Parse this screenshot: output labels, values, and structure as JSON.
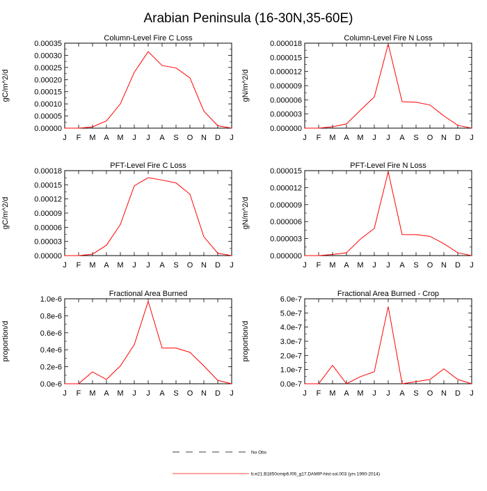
{
  "title": "Arabian Peninsula (16-30N,35-60E)",
  "months": [
    "J",
    "F",
    "M",
    "A",
    "M",
    "J",
    "J",
    "A",
    "S",
    "O",
    "N",
    "D",
    "J"
  ],
  "series_color": "#ff0000",
  "chart_data": [
    {
      "type": "line",
      "title": "Column-Level Fire C Loss",
      "ylabel": "gC/m^2/d",
      "ylim": [
        0,
        0.00035
      ],
      "yticks": [
        "0.00000",
        "0.00005",
        "0.00010",
        "0.00015",
        "0.00020",
        "0.00025",
        "0.00030",
        "0.00035"
      ],
      "values": [
        0.0,
        0.0,
        5e-06,
        3e-05,
        0.0001,
        0.00023,
        0.000315,
        0.000258,
        0.000248,
        0.000207,
        7e-05,
        1e-05,
        0.0
      ]
    },
    {
      "type": "line",
      "title": "Column-Level Fire N Loss",
      "ylabel": "gN/m^2/d",
      "ylim": [
        0,
        1.8e-05
      ],
      "yticks": [
        "0.000000",
        "0.000003",
        "0.000006",
        "0.000009",
        "0.000012",
        "0.000015",
        "0.000018"
      ],
      "values": [
        0.0,
        0.0,
        3e-07,
        9e-07,
        3.8e-06,
        6.6e-06,
        1.78e-05,
        5.6e-06,
        5.5e-06,
        4.9e-06,
        2.6e-06,
        6e-07,
        0.0
      ]
    },
    {
      "type": "line",
      "title": "PFT-Level Fire C Loss",
      "ylabel": "gC/m^2/d",
      "ylim": [
        0,
        0.00018
      ],
      "yticks": [
        "0.00000",
        "0.00003",
        "0.00006",
        "0.00009",
        "0.00012",
        "0.00015",
        "0.00018"
      ],
      "values": [
        0.0,
        0.0,
        3e-06,
        2.2e-05,
        6.6e-05,
        0.000148,
        0.000165,
        0.00016,
        0.000154,
        0.00013,
        4e-05,
        5e-06,
        0.0
      ]
    },
    {
      "type": "line",
      "title": "PFT-Level Fire N Loss",
      "ylabel": "gN/m^2/d",
      "ylim": [
        0,
        1.5e-05
      ],
      "yticks": [
        "0.000000",
        "0.000003",
        "0.000006",
        "0.000009",
        "0.000012",
        "0.000015"
      ],
      "values": [
        0.0,
        0.0,
        2e-07,
        5e-07,
        2.9e-06,
        4.8e-06,
        1.48e-05,
        3.7e-06,
        3.7e-06,
        3.4e-06,
        2.1e-06,
        5e-07,
        0.0
      ]
    },
    {
      "type": "line",
      "title": "Fractional Area Burned",
      "ylabel": "proportion/d",
      "ylim": [
        0,
        1e-06
      ],
      "yticks": [
        "0.0e-6",
        "0.2e-6",
        "0.4e-6",
        "0.6e-6",
        "0.8e-6",
        "1.0e-6"
      ],
      "values": [
        0.0,
        0.0,
        1.4e-07,
        5e-08,
        2.1e-07,
        4.6e-07,
        9.7e-07,
        4.2e-07,
        4.2e-07,
        3.7e-07,
        2.1e-07,
        4e-08,
        0.0
      ]
    },
    {
      "type": "line",
      "title": "Fractional Area Burned - Crop",
      "ylabel": "proportion/d",
      "ylim": [
        0,
        6e-07
      ],
      "yticks": [
        "0.0e-7",
        "1.0e-7",
        "2.0e-7",
        "3.0e-7",
        "4.0e-7",
        "5.0e-7",
        "6.0e-7"
      ],
      "values": [
        0.0,
        0.0,
        1.3e-07,
        0.0,
        5e-08,
        8.5e-08,
        5.45e-07,
        0.0,
        1.5e-08,
        3e-08,
        1.05e-07,
        3e-08,
        0.0
      ]
    }
  ],
  "legend": {
    "obs_label": "No Obs",
    "model_label": "b.e21.B1850cmip6.f09_g17.DAMIP-hist-sol.003 (yrs 1990-2014)"
  }
}
